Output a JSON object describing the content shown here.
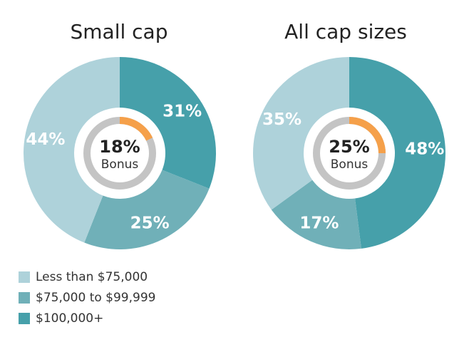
{
  "chart_data": [
    {
      "type": "pie",
      "title": "Small cap",
      "categories": [
        "Less than $75,000",
        "$75,000 to $99,999",
        "$100,000+"
      ],
      "values": [
        44,
        25,
        31
      ],
      "value_labels": [
        "44%",
        "25%",
        "31%"
      ],
      "bonus": {
        "value": 18,
        "label": "18%",
        "text": "Bonus"
      }
    },
    {
      "type": "pie",
      "title": "All cap sizes",
      "categories": [
        "Less than $75,000",
        "$75,000 to $99,999",
        "$100,000+"
      ],
      "values": [
        35,
        17,
        48
      ],
      "value_labels": [
        "35%",
        "17%",
        "48%"
      ],
      "bonus": {
        "value": 25,
        "label": "25%",
        "text": "Bonus"
      }
    }
  ],
  "legend": {
    "placement": "bottom-left",
    "items": [
      {
        "label": "Less than $75,000",
        "color": "#aed2da"
      },
      {
        "label": "$75,000 to $99,999",
        "color": "#70b0b8"
      },
      {
        "label": "$100,000+",
        "color": "#46a0aa"
      }
    ]
  },
  "colors": {
    "ring_track": "#c4c4c4",
    "bonus": "#f5a04a",
    "label_text": "#ffffff",
    "center_text": "#222222"
  }
}
